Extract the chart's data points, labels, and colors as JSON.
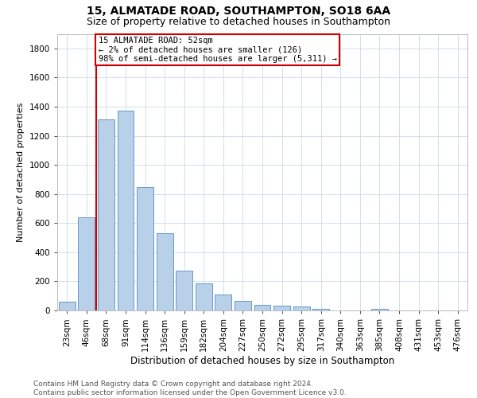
{
  "title1": "15, ALMATADE ROAD, SOUTHAMPTON, SO18 6AA",
  "title2": "Size of property relative to detached houses in Southampton",
  "xlabel": "Distribution of detached houses by size in Southampton",
  "ylabel": "Number of detached properties",
  "categories": [
    "23sqm",
    "46sqm",
    "68sqm",
    "91sqm",
    "114sqm",
    "136sqm",
    "159sqm",
    "182sqm",
    "204sqm",
    "227sqm",
    "250sqm",
    "272sqm",
    "295sqm",
    "317sqm",
    "340sqm",
    "363sqm",
    "385sqm",
    "408sqm",
    "431sqm",
    "453sqm",
    "476sqm"
  ],
  "values": [
    60,
    640,
    1310,
    1375,
    845,
    530,
    275,
    185,
    110,
    65,
    38,
    35,
    25,
    10,
    0,
    0,
    10,
    0,
    0,
    0,
    0
  ],
  "bar_color": "#b8d0e8",
  "bar_edge_color": "#6699cc",
  "vline_x": 1.5,
  "vline_color": "#cc0000",
  "box_text_line1": "15 ALMATADE ROAD: 52sqm",
  "box_text_line2": "← 2% of detached houses are smaller (126)",
  "box_text_line3": "98% of semi-detached houses are larger (5,311) →",
  "box_color": "#cc0000",
  "box_bg": "#ffffff",
  "ylim": [
    0,
    1900
  ],
  "yticks": [
    0,
    200,
    400,
    600,
    800,
    1000,
    1200,
    1400,
    1600,
    1800
  ],
  "footer1": "Contains HM Land Registry data © Crown copyright and database right 2024.",
  "footer2": "Contains public sector information licensed under the Open Government Licence v3.0.",
  "grid_color": "#ccd9e8",
  "title1_fontsize": 10,
  "title2_fontsize": 9,
  "xlabel_fontsize": 8.5,
  "ylabel_fontsize": 8,
  "tick_fontsize": 7.5,
  "footer_fontsize": 6.5,
  "annotation_fontsize": 7.5
}
